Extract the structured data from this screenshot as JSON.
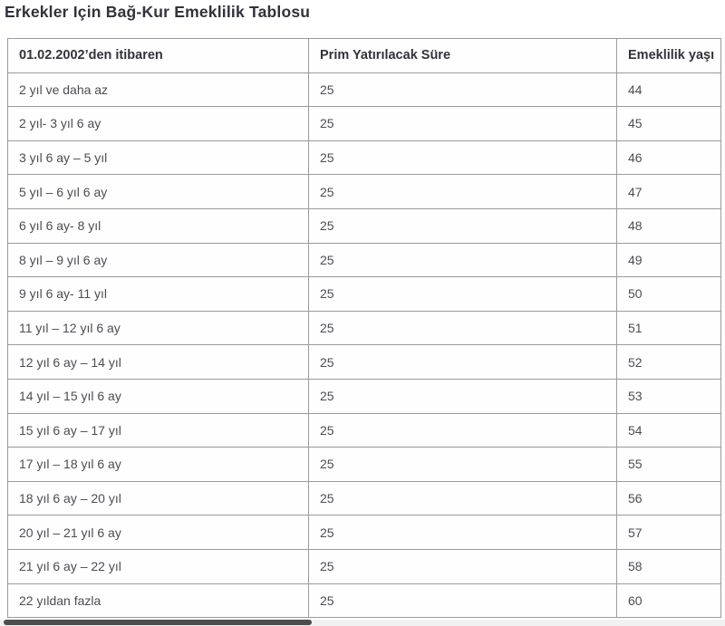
{
  "page_title": "Erkekler Için Bağ-Kur Emeklilik Tablosu",
  "table": {
    "headers": [
      "01.02.2002’den itibaren",
      "Prim Yatırılacak Süre",
      "Emeklilik yaşı"
    ],
    "rows": [
      {
        "period": "2 yıl ve daha az",
        "prim": "25",
        "age": "44"
      },
      {
        "period": "2 yıl- 3 yıl 6 ay",
        "prim": "25",
        "age": "45"
      },
      {
        "period": "3 yıl 6 ay – 5 yıl",
        "prim": "25",
        "age": "46"
      },
      {
        "period": "5 yıl – 6 yıl 6 ay",
        "prim": "25",
        "age": "47"
      },
      {
        "period": "6 yıl 6 ay- 8 yıl",
        "prim": "25",
        "age": "48"
      },
      {
        "period": "8 yıl – 9 yıl 6 ay",
        "prim": "25",
        "age": "49"
      },
      {
        "period": "9 yıl 6 ay- 11 yıl",
        "prim": "25",
        "age": "50"
      },
      {
        "period": "11 yıl – 12 yıl 6 ay",
        "prim": "25",
        "age": "51"
      },
      {
        "period": "12 yıl 6 ay – 14 yıl",
        "prim": "25",
        "age": "52"
      },
      {
        "period": "14 yıl – 15 yıl 6 ay",
        "prim": "25",
        "age": "53"
      },
      {
        "period": "15 yıl 6 ay – 17 yıl",
        "prim": "25",
        "age": "54"
      },
      {
        "period": "17 yıl – 18 yıl 6 ay",
        "prim": "25",
        "age": "55"
      },
      {
        "period": "18 yıl 6 ay – 20 yıl",
        "prim": "25",
        "age": "56"
      },
      {
        "period": "20 yıl – 21 yıl 6 ay",
        "prim": "25",
        "age": "57"
      },
      {
        "period": "21 yıl 6 ay – 22 yıl",
        "prim": "25",
        "age": "58"
      },
      {
        "period": "22 yıldan fazla",
        "prim": "25",
        "age": "60"
      }
    ]
  },
  "colors": {
    "title_text": "#32323c",
    "header_text": "#32323a",
    "cell_text": "#4c4c54",
    "table_border": "#9b9b9b",
    "scrollbar_thumb": "#4d4d4d",
    "scrollbar_track": "#f1f1f1",
    "background": "#ffffff"
  }
}
